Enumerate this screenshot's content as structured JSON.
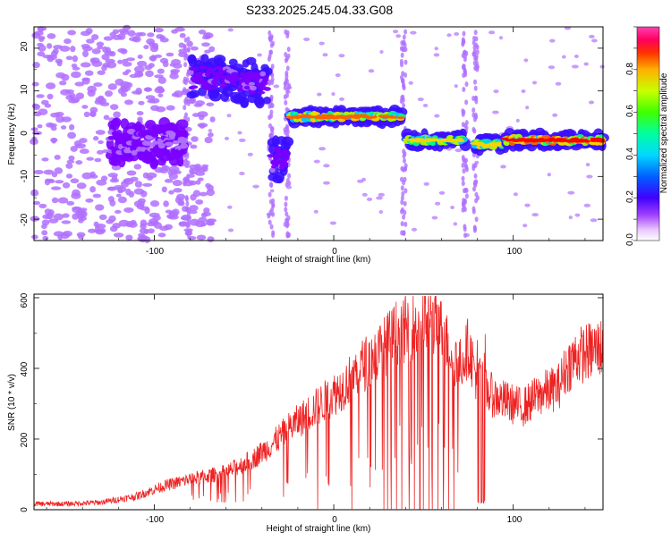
{
  "title": "S233.2025.245.04.33.G08",
  "top_panel": {
    "xlabel": "Height of straight line (km)",
    "ylabel": "Frequency (Hz)",
    "colorbar_label": "Normalized spectral amplitude",
    "x_ticks": [
      "-100",
      "0",
      "100"
    ],
    "y_ticks": [
      "20",
      "10",
      "0",
      "-10",
      "-20"
    ],
    "cbar_ticks": [
      "0.0",
      "0.2",
      "0.4",
      "0.6",
      "0.8"
    ]
  },
  "bottom_panel": {
    "xlabel": "Height of straight line (km)",
    "ylabel": "SNR (10 * v/v)",
    "x_ticks": [
      "-100",
      "0",
      "100"
    ],
    "y_ticks": [
      "0",
      "200",
      "400",
      "600"
    ]
  },
  "colors": {
    "snr_line": "#ee2222",
    "cmap": [
      "#f0d8ff",
      "#b070ff",
      "#7a00ff",
      "#3b10ff",
      "#0050ff",
      "#00c8ff",
      "#00ff80",
      "#a0ff00",
      "#ffd000",
      "#ff6000",
      "#ff0000"
    ]
  },
  "chart_data": [
    {
      "type": "heatmap",
      "title": "S233.2025.245.04.33.G08",
      "xlabel": "Height of straight line (km)",
      "ylabel": "Frequency (Hz)",
      "xlim": [
        -167,
        150
      ],
      "ylim": [
        -25,
        25
      ],
      "colorbar": {
        "label": "Normalized spectral amplitude",
        "range": [
          0,
          1
        ]
      },
      "ridges": [
        {
          "x_start": -125,
          "x_end": -83,
          "freq": -2,
          "amplitude": 0.2
        },
        {
          "x_start": -80,
          "x_end": -52,
          "freq": 13,
          "amplitude": 0.25
        },
        {
          "x_start": -52,
          "x_end": -37,
          "freq": 12,
          "amplitude": 0.25
        },
        {
          "x_start": -35,
          "x_end": -26,
          "freq": -6,
          "amplitude": 0.25
        },
        {
          "x_start": -25,
          "x_end": 38,
          "freq": 4,
          "amplitude": 0.85
        },
        {
          "x_start": 40,
          "x_end": 73,
          "freq": -1.5,
          "amplitude": 0.75
        },
        {
          "x_start": 78,
          "x_end": 95,
          "freq": -2.5,
          "amplitude": 0.8
        },
        {
          "x_start": 95,
          "x_end": 150,
          "freq": -1.5,
          "amplitude": 0.95
        }
      ]
    },
    {
      "type": "line",
      "xlabel": "Height of straight line (km)",
      "ylabel": "SNR (10 * v/v)",
      "xlim": [
        -167,
        150
      ],
      "ylim": [
        0,
        610
      ],
      "series": [
        {
          "name": "SNR",
          "x": [
            -167,
            -150,
            -130,
            -110,
            -95,
            -80,
            -60,
            -45,
            -35,
            -25,
            -15,
            -5,
            5,
            15,
            25,
            35,
            45,
            52,
            58,
            62,
            70,
            75,
            80,
            85,
            90,
            95,
            105,
            115,
            125,
            130,
            135,
            145,
            150
          ],
          "y": [
            18,
            18,
            22,
            40,
            70,
            90,
            110,
            150,
            190,
            240,
            280,
            320,
            360,
            420,
            460,
            520,
            540,
            560,
            550,
            500,
            420,
            480,
            380,
            350,
            330,
            320,
            300,
            340,
            360,
            420,
            450,
            470,
            480
          ]
        }
      ],
      "dropouts_to_zero": [
        -9,
        10,
        28,
        30,
        32,
        35,
        38,
        42,
        45,
        48,
        50,
        53,
        55,
        58,
        61,
        64,
        67,
        80,
        81,
        82,
        83,
        84
      ]
    }
  ]
}
